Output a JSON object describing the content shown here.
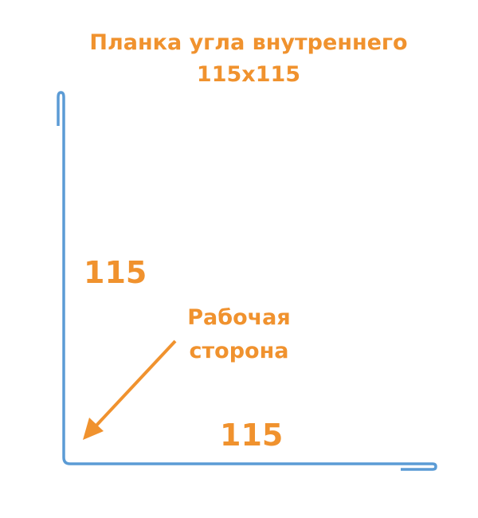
{
  "title_line1": "Планка угла внутреннего",
  "title_line2": "115x115",
  "dim_vertical": "115",
  "dim_horizontal": "115",
  "working_side_line1": "Рабочая",
  "working_side_line2": "сторона",
  "colors": {
    "profile": "#5b9bd5",
    "text": "#f0922e"
  }
}
